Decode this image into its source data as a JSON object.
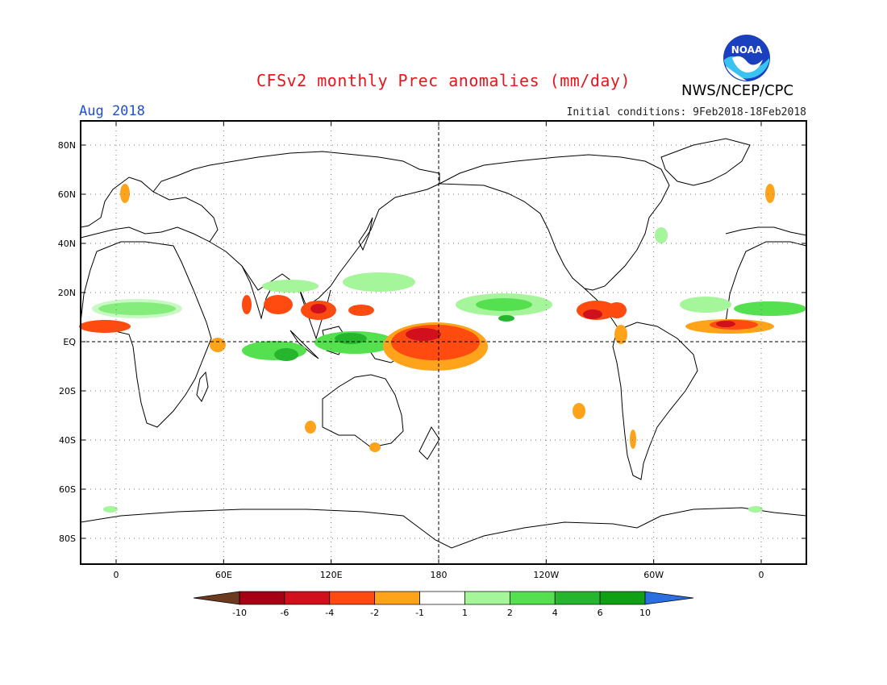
{
  "header": {
    "title": "CFSv2 monthly Prec anomalies (mm/day)",
    "agency": "NWS/NCEP/CPC",
    "logo_text": "NOAA",
    "month": "Aug 2018",
    "initial_conditions": "Initial conditions: 9Feb2018-18Feb2018"
  },
  "map": {
    "lat_labels": [
      "80N",
      "60N",
      "40N",
      "20N",
      "EQ",
      "20S",
      "40S",
      "60S",
      "80S"
    ],
    "lon_labels": [
      "0",
      "60E",
      "120E",
      "180",
      "120W",
      "60W",
      "0"
    ],
    "colors": {
      "land_outline": "#000000",
      "grid": "#555555"
    }
  },
  "colorbar": {
    "labels": [
      "-10",
      "-6",
      "-4",
      "-2",
      "-1",
      "1",
      "2",
      "4",
      "6",
      "10"
    ],
    "colors": [
      "#6b3a1f",
      "#a50014",
      "#d0101c",
      "#ff4a10",
      "#ffa31a",
      "#ffffff",
      "#a5f59a",
      "#55e050",
      "#26b62e",
      "#10a014",
      "#2a6fe0"
    ]
  }
}
